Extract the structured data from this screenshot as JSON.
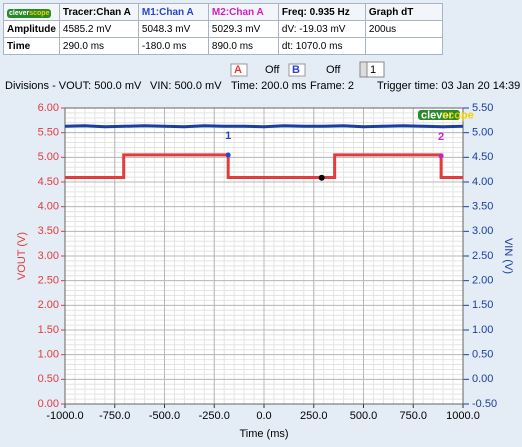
{
  "table": {
    "logo": [
      "clever",
      "scope"
    ],
    "header": [
      "Tracer:Chan A",
      "M1:Chan A",
      "M2:Chan A",
      "Freq: 0.935 Hz",
      "Graph dT"
    ],
    "rows": [
      [
        "Amplitude",
        "4585.2 mV",
        "5048.3 mV",
        "5029.3 mV",
        "dV: -19.03 mV",
        "200us"
      ],
      [
        "Time",
        "290.0 ms",
        "-180.0 ms",
        "890.0 ms",
        "dt: 1070.0 ms"
      ]
    ]
  },
  "controls": {
    "a_label": "A",
    "a_state": "Off",
    "b_label": "B",
    "b_state": "Off",
    "spinner": "1"
  },
  "info": {
    "divisions": "Divisions -  VOUT: 500.0 mV",
    "vin": "VIN: 500.0 mV",
    "time": "Time: 200.0 ms",
    "frame": "Frame: 2",
    "trigger": "Trigger time: 03 Jan 20 14:39"
  },
  "chart_data": {
    "type": "line",
    "x_label": "Time (ms)",
    "y_label": "VOUT (V)",
    "y2_label": "VIN (V)",
    "xlim": [
      -1000,
      1000
    ],
    "xticks": [
      {
        "value": -1000,
        "label": "-1000.0"
      },
      {
        "value": -750,
        "label": "-750.0"
      },
      {
        "value": -500,
        "label": "-500.0"
      },
      {
        "value": -250,
        "label": "-250.0"
      },
      {
        "value": 0,
        "label": "0.0"
      },
      {
        "value": 250,
        "label": "250.0"
      },
      {
        "value": 500,
        "label": "500.0"
      },
      {
        "value": 750,
        "label": "750.0"
      },
      {
        "value": 1000,
        "label": "1000.0"
      }
    ],
    "ylim": [
      0,
      6
    ],
    "yticks": [
      {
        "value": 0,
        "label": "0.00"
      },
      {
        "value": 0.5,
        "label": "0.50"
      },
      {
        "value": 1,
        "label": "1.00"
      },
      {
        "value": 1.5,
        "label": "1.50"
      },
      {
        "value": 2,
        "label": "2.00"
      },
      {
        "value": 2.5,
        "label": "2.50"
      },
      {
        "value": 3,
        "label": "3.00"
      },
      {
        "value": 3.5,
        "label": "3.50"
      },
      {
        "value": 4,
        "label": "4.00"
      },
      {
        "value": 4.5,
        "label": "4.50"
      },
      {
        "value": 5,
        "label": "5.00"
      },
      {
        "value": 5.5,
        "label": "5.50"
      },
      {
        "value": 6,
        "label": "6.00"
      }
    ],
    "y2lim": [
      -0.5,
      5.5
    ],
    "y2ticks": [
      {
        "value": -0.5,
        "label": "-0.50"
      },
      {
        "value": 0,
        "label": "0.00"
      },
      {
        "value": 0.5,
        "label": "0.50"
      },
      {
        "value": 1,
        "label": "1.00"
      },
      {
        "value": 1.5,
        "label": "1.50"
      },
      {
        "value": 2,
        "label": "2.00"
      },
      {
        "value": 2.5,
        "label": "2.50"
      },
      {
        "value": 3,
        "label": "3.00"
      },
      {
        "value": 3.5,
        "label": "3.50"
      },
      {
        "value": 4,
        "label": "4.00"
      },
      {
        "value": 4.5,
        "label": "4.50"
      },
      {
        "value": 5,
        "label": "5.00"
      },
      {
        "value": 5.5,
        "label": "5.50"
      }
    ],
    "grid": true,
    "minor_step": {
      "x": 50,
      "y": 0.1
    },
    "series": [
      {
        "color": "#e53b3b",
        "x": [
          -1000,
          -705,
          -705,
          -180,
          -180,
          355,
          355,
          890,
          890,
          1000
        ],
        "values": [
          4.59,
          4.59,
          5.05,
          5.05,
          4.59,
          4.59,
          5.05,
          5.05,
          4.59,
          4.59
        ]
      },
      {
        "color": "#1a3f9e",
        "axis": "y2",
        "x": [
          -1000,
          -900,
          -800,
          -700,
          -600,
          -500,
          -400,
          -300,
          -200,
          -100,
          0,
          100,
          200,
          300,
          400,
          500,
          600,
          700,
          800,
          900,
          1000
        ],
        "values": [
          5.13,
          5.14,
          5.12,
          5.13,
          5.14,
          5.13,
          5.12,
          5.14,
          5.13,
          5.13,
          5.12,
          5.14,
          5.13,
          5.13,
          5.14,
          5.12,
          5.13,
          5.14,
          5.13,
          5.12,
          5.13
        ]
      }
    ],
    "markers": [
      {
        "label": "1",
        "x": -180,
        "y": 5.048,
        "color": "#2846c8"
      },
      {
        "label": "2",
        "x": 890,
        "y": 5.029,
        "color": "#d020c0"
      }
    ],
    "tracer": {
      "x": 290,
      "y": 4.585
    }
  }
}
